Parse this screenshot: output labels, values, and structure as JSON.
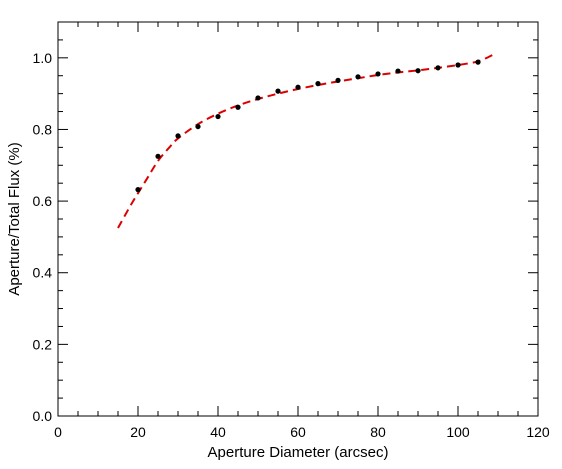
{
  "chart_data": {
    "type": "scatter",
    "title": "",
    "xlabel": "Aperture Diameter (arcsec)",
    "ylabel": "Aperture/Total Flux (%)",
    "xlim": [
      0,
      120
    ],
    "ylim": [
      0,
      1.1
    ],
    "x_ticks": [
      0,
      20,
      40,
      60,
      80,
      100,
      120
    ],
    "x_tick_labels": [
      "0",
      "20",
      "40",
      "60",
      "80",
      "100",
      "120"
    ],
    "y_ticks": [
      0.0,
      0.2,
      0.4,
      0.6,
      0.8,
      1.0
    ],
    "y_tick_labels": [
      "0.0",
      "0.2",
      "0.4",
      "0.6",
      "0.8",
      "1.0"
    ],
    "grid": false,
    "legend": "none",
    "series": [
      {
        "kind": "points",
        "color": "#000000",
        "x": [
          20,
          25,
          30,
          35,
          40,
          45,
          50,
          55,
          60,
          65,
          70,
          75,
          80,
          85,
          90,
          95,
          100,
          105
        ],
        "y": [
          0.632,
          0.725,
          0.782,
          0.808,
          0.836,
          0.862,
          0.888,
          0.907,
          0.918,
          0.928,
          0.937,
          0.947,
          0.955,
          0.963,
          0.964,
          0.972,
          0.98,
          0.988
        ]
      },
      {
        "kind": "fit-line",
        "style": "dashed",
        "color": "#dd0000",
        "x": [
          15,
          18,
          20,
          22,
          25,
          28,
          30,
          35,
          40,
          45,
          50,
          55,
          60,
          65,
          70,
          75,
          80,
          85,
          90,
          95,
          100,
          105,
          109
        ],
        "y": [
          0.525,
          0.585,
          0.622,
          0.658,
          0.712,
          0.752,
          0.775,
          0.815,
          0.844,
          0.867,
          0.885,
          0.9,
          0.913,
          0.924,
          0.934,
          0.943,
          0.952,
          0.959,
          0.965,
          0.972,
          0.98,
          0.99,
          1.01
        ]
      }
    ]
  }
}
